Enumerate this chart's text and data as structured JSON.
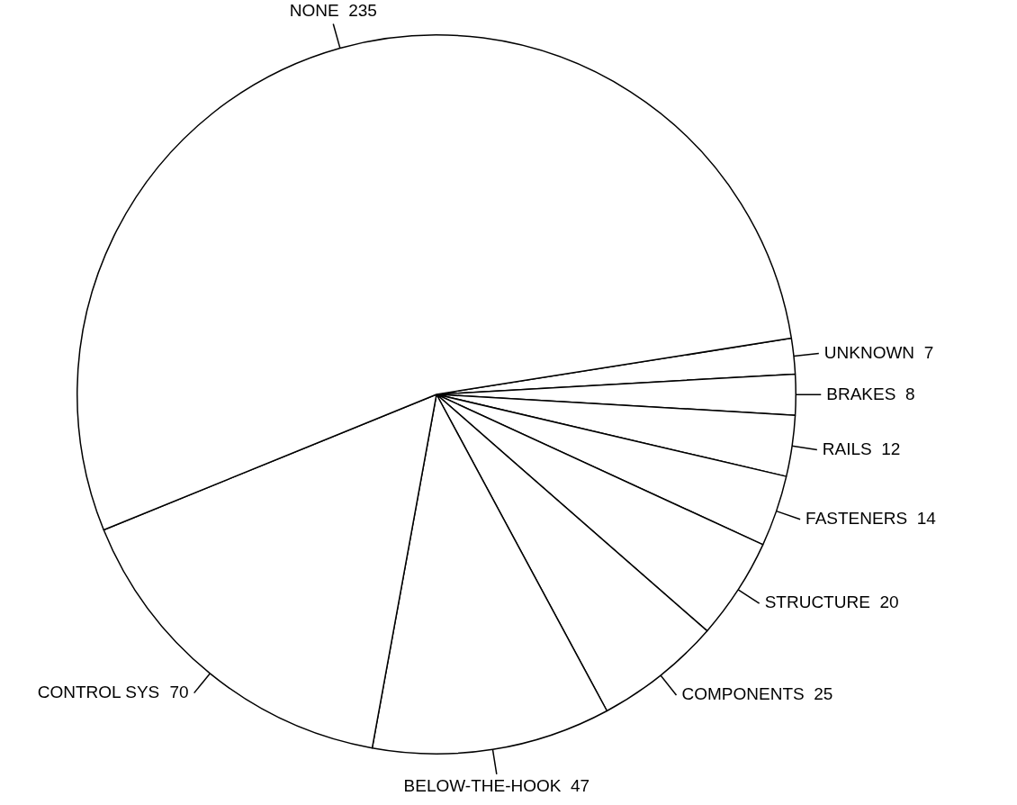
{
  "chart_data": {
    "type": "pie",
    "categories": [
      "UNKNOWN",
      "BRAKES",
      "RAILS",
      "FASTENERS",
      "STRUCTURE",
      "COMPONENTS",
      "BELOW-THE-HOOK",
      "CONTROL SYS",
      "NONE"
    ],
    "values": [
      7,
      8,
      12,
      14,
      20,
      25,
      47,
      70,
      235
    ],
    "colors": [
      "#ffffff",
      "#ffffff",
      "#ffffff",
      "#ffffff",
      "#ffffff",
      "#ffffff",
      "#ffffff",
      "#ffffff",
      "#ffffff"
    ],
    "data_labels": true,
    "legend": false
  }
}
